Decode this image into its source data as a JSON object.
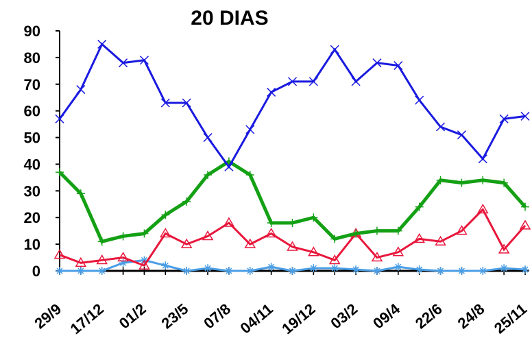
{
  "chart_data": {
    "type": "line",
    "title": "20 DIAS",
    "categories": [
      "29/9",
      null,
      "17/12",
      null,
      "01/2",
      null,
      "23/5",
      null,
      "07/8",
      null,
      "04/11",
      null,
      "19/12",
      null,
      "03/2",
      null,
      "09/4",
      null,
      "22/6",
      null,
      "24/8",
      null,
      "25/11"
    ],
    "ylim": [
      0,
      90
    ],
    "yticks": [
      0,
      10,
      20,
      30,
      40,
      50,
      60,
      70,
      80,
      90
    ],
    "series": [
      {
        "color": "#000000",
        "marker": "plus",
        "values": [
          0,
          0,
          0,
          0,
          0,
          0,
          0,
          0,
          0,
          0,
          0,
          0,
          0,
          0,
          0,
          0,
          0,
          0,
          0,
          0,
          0,
          0,
          0
        ]
      },
      {
        "color": "#4a9ee6",
        "marker": "star",
        "values": [
          0,
          0,
          0,
          3,
          4,
          2,
          0,
          1,
          0,
          0,
          1.5,
          0,
          1,
          1,
          0.5,
          0,
          1.5,
          0.5,
          0,
          0,
          0,
          1,
          0.5
        ]
      },
      {
        "color": "#e8173c",
        "marker": "triangle",
        "values": [
          6,
          3,
          4,
          5,
          2,
          14,
          10,
          13,
          18,
          10,
          14,
          9,
          7,
          4,
          14,
          5,
          7,
          12,
          11,
          15,
          23,
          8,
          17
        ]
      },
      {
        "color": "#14a014",
        "marker": "plus",
        "width": 5,
        "values": [
          37,
          29,
          11,
          13,
          14,
          21,
          26,
          36,
          41,
          36,
          18,
          18,
          20,
          12,
          14,
          15,
          15,
          24,
          34,
          33,
          34,
          33,
          24
        ]
      },
      {
        "color": "#1a1ae0",
        "marker": "x",
        "values": [
          57,
          68,
          85,
          78,
          79,
          63,
          63,
          50,
          39,
          53,
          67,
          71,
          71,
          83,
          71,
          78,
          77,
          64,
          54,
          51,
          42,
          57,
          58
        ]
      }
    ]
  }
}
